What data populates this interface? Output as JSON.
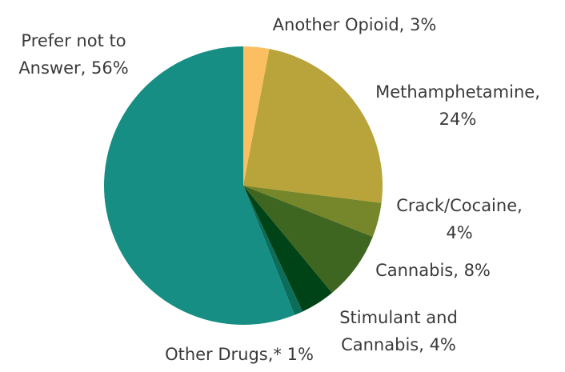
{
  "chart_data": {
    "type": "pie",
    "title": "",
    "slices": [
      {
        "label_lines": [
          "Another Opioid, 3%"
        ],
        "value": 3,
        "color": "#FBBF62"
      },
      {
        "label_lines": [
          "Methamphetamine,",
          "24%"
        ],
        "value": 24,
        "color": "#B8A43A"
      },
      {
        "label_lines": [
          "Crack/Cocaine,",
          "4%"
        ],
        "value": 4,
        "color": "#76862A"
      },
      {
        "label_lines": [
          "Cannabis, 8%"
        ],
        "value": 8,
        "color": "#3E6621"
      },
      {
        "label_lines": [
          "Stimulant and",
          "Cannabis, 4%"
        ],
        "value": 4,
        "color": "#004316"
      },
      {
        "label_lines": [
          "Other Drugs,* 1%"
        ],
        "value": 1,
        "color": "#0B6D5A"
      },
      {
        "label_lines": [
          "Prefer not to",
          "Answer, 56%"
        ],
        "value": 56,
        "color": "#168E83"
      }
    ]
  }
}
